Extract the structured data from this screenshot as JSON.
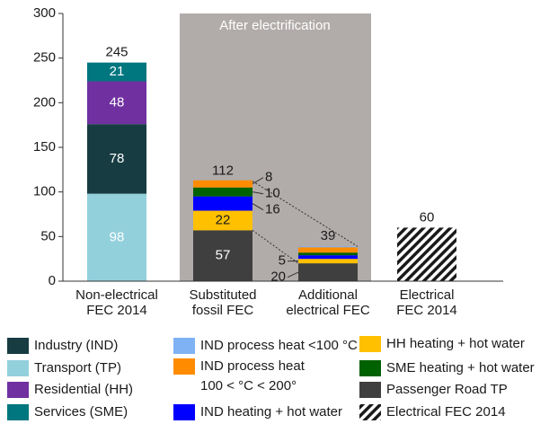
{
  "chart_data": {
    "type": "stacked_bar",
    "annotation": "After electrification",
    "categories": [
      [
        "Non-electrical",
        "FEC 2014"
      ],
      [
        "Substituted",
        "fossil FEC"
      ],
      [
        "Additional",
        "electrical FEC"
      ],
      [
        "Electrical",
        "FEC 2014"
      ]
    ],
    "ylim": [
      0,
      300
    ],
    "yticks": [
      0,
      50,
      100,
      150,
      200,
      250,
      300
    ],
    "totals": [
      245,
      112,
      39,
      60
    ],
    "series": [
      {
        "name": [
          "Transport (TP)"
        ],
        "color": "#92d0dc",
        "values": [
          98,
          null,
          null,
          null
        ],
        "value_labels": [
          "98",
          null,
          null,
          null
        ]
      },
      {
        "name": [
          "Industry (IND)"
        ],
        "color": "#173c42",
        "values": [
          78,
          null,
          null,
          null
        ],
        "value_labels": [
          "78",
          null,
          null,
          null
        ]
      },
      {
        "name": [
          "Residential (HH)"
        ],
        "color": "#7030a0",
        "values": [
          48,
          null,
          null,
          null
        ],
        "value_labels": [
          "48",
          null,
          null,
          null
        ]
      },
      {
        "name": [
          "Services (SME)"
        ],
        "color": "#00767f",
        "values": [
          21,
          null,
          null,
          null
        ],
        "value_labels": [
          "21",
          null,
          null,
          null
        ]
      },
      {
        "name": [
          "Passenger Road TP"
        ],
        "color": "#3f3f3f",
        "values": [
          null,
          57,
          20,
          null
        ],
        "value_labels": [
          null,
          "57",
          "20",
          null
        ]
      },
      {
        "name": [
          "HH heating + hot water"
        ],
        "color": "#ffc000",
        "values": [
          null,
          22,
          5,
          null
        ],
        "value_labels": [
          null,
          "22",
          "5",
          null
        ]
      },
      {
        "name": [
          "IND heating + hot water"
        ],
        "color": "#0000ff",
        "values": [
          null,
          16,
          4,
          null
        ],
        "value_labels": [
          null,
          "16",
          null,
          null
        ]
      },
      {
        "name": [
          "SME heating + hot water"
        ],
        "color": "#006100",
        "values": [
          null,
          10,
          3,
          null
        ],
        "value_labels": [
          null,
          "10",
          null,
          null
        ]
      },
      {
        "name": [
          "IND process heat",
          "100 < °C < 200°"
        ],
        "color": "#ff8c00",
        "values": [
          null,
          8,
          6,
          null
        ],
        "value_labels": [
          null,
          "8",
          null,
          null
        ]
      },
      {
        "name": [
          "IND process heat <100 °C"
        ],
        "color": "#7eb2f4",
        "values": [
          null,
          null,
          1,
          null
        ],
        "value_labels": [
          null,
          null,
          null,
          null
        ]
      },
      {
        "name": [
          "Electrical FEC 2014"
        ],
        "color": "hatch",
        "values": [
          null,
          null,
          null,
          60
        ],
        "value_labels": [
          null,
          null,
          null,
          null
        ]
      }
    ]
  }
}
